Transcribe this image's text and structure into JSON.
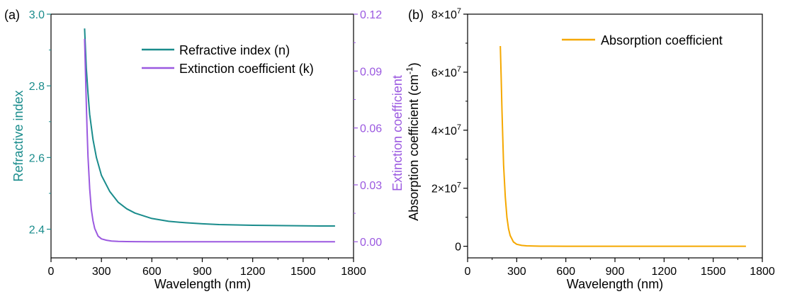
{
  "colors": {
    "n": "#1a8c8c",
    "k": "#9b59e0",
    "alpha": "#f5a800",
    "axis": "#000000"
  },
  "panel_a": {
    "label": "(a)"
  },
  "panel_b": {
    "label": "(b)"
  },
  "chart_data": [
    {
      "type": "line",
      "xlabel": "Wavelength (nm)",
      "ylabel": "Refractive index",
      "y2label": "Extinction coefficient",
      "xlim": [
        0,
        1800
      ],
      "ylim": [
        2.32,
        3.0
      ],
      "y2lim": [
        -0.0085,
        0.12
      ],
      "xticks": [
        "0",
        "300",
        "600",
        "900",
        "1200",
        "1500",
        "1800"
      ],
      "yticks": [
        "2.4",
        "2.6",
        "2.8",
        "3.0"
      ],
      "y2ticks": [
        "0.00",
        "0.03",
        "0.06",
        "0.09",
        "0.12"
      ],
      "legend_position": "top-right",
      "series": [
        {
          "name": "Refractive index (n)",
          "axis": "left",
          "x": [
            200,
            210,
            220,
            230,
            250,
            270,
            300,
            350,
            400,
            450,
            500,
            600,
            700,
            800,
            900,
            1000,
            1200,
            1400,
            1600,
            1690
          ],
          "y": [
            2.96,
            2.85,
            2.78,
            2.72,
            2.65,
            2.6,
            2.55,
            2.505,
            2.475,
            2.457,
            2.445,
            2.43,
            2.422,
            2.418,
            2.415,
            2.413,
            2.411,
            2.41,
            2.409,
            2.409
          ]
        },
        {
          "name": "Extinction coefficient (k)",
          "axis": "right",
          "x": [
            200,
            205,
            210,
            215,
            220,
            230,
            240,
            250,
            260,
            280,
            300,
            330,
            360,
            400,
            450,
            500,
            600,
            800,
            1000,
            1200,
            1400,
            1690
          ],
          "y": [
            0.107,
            0.09,
            0.073,
            0.058,
            0.045,
            0.028,
            0.017,
            0.011,
            0.007,
            0.003,
            0.0015,
            0.0008,
            0.0004,
            0.0002,
            0.0001,
            5e-05,
            0.0,
            0.0,
            0.0,
            0.0,
            0.0,
            0.0
          ]
        }
      ]
    },
    {
      "type": "line",
      "xlabel": "Wavelength (nm)",
      "ylabel": "Absorption coefficient (cm",
      "ylabel_sup": "-1",
      "ylabel_end": ")",
      "xlim": [
        0,
        1800
      ],
      "ylim": [
        -4000000,
        80000000
      ],
      "xticks": [
        "0",
        "300",
        "600",
        "900",
        "1200",
        "1500",
        "1800"
      ],
      "yticks": [
        {
          "value": 0,
          "label": "0",
          "sup": ""
        },
        {
          "value": 20000000,
          "label": "2×10",
          "sup": "7"
        },
        {
          "value": 40000000,
          "label": "4×10",
          "sup": "7"
        },
        {
          "value": 60000000,
          "label": "6×10",
          "sup": "7"
        },
        {
          "value": 80000000,
          "label": "8×10",
          "sup": "7"
        }
      ],
      "legend_position": "top-right",
      "series": [
        {
          "name": "Absorption coefficient",
          "x": [
            200,
            205,
            210,
            215,
            220,
            230,
            240,
            250,
            260,
            280,
            300,
            330,
            360,
            400,
            450,
            500,
            600,
            800,
            1000,
            1200,
            1400,
            1700
          ],
          "y": [
            69000000,
            58000000,
            47000000,
            37000000,
            28000000,
            17000000,
            10000000,
            6000000,
            3700000,
            1500000,
            700000,
            300000,
            150000,
            80000,
            40000,
            20000,
            0,
            0,
            0,
            0,
            0,
            0
          ]
        }
      ]
    }
  ]
}
